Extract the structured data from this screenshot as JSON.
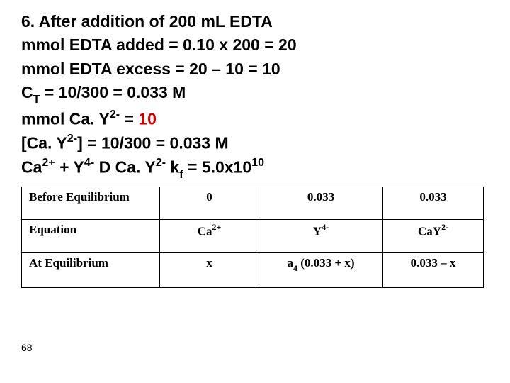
{
  "lines": {
    "l1_a": "6. After addition of 200 m",
    "l1_b": "L EDTA",
    "l2": "mmol EDTA added = 0.10 x 200 = 20",
    "l3": "mmol EDTA excess = 20 – 10 = 10",
    "l4_a": "C",
    "l4_sub": "T",
    "l4_b": " = 10/300 = 0.033 M",
    "l5_a": "mmol Ca. Y",
    "l5_sup": "2-",
    "l5_b": " = ",
    "l5_red": "10",
    "l6_a": "[Ca. Y",
    "l6_sup": "2-",
    "l6_b": "] = 10/300 = 0.033 M",
    "l7_a": "Ca",
    "l7_sup1": "2+",
    "l7_b": " + Y",
    "l7_sup2": "4-",
    "l7_arrow": " D ",
    "l7_c": "Ca. Y",
    "l7_sup3": "2-",
    "l7_d": "   k",
    "l7_sub": "f",
    "l7_e": " = 5.0x10",
    "l7_sup4": "10"
  },
  "table": {
    "rows": [
      {
        "label": "Before Equilibrium",
        "c2": "0",
        "c3": "0.033",
        "c4": "0.033"
      },
      {
        "label": "Equation",
        "c2_a": "Ca",
        "c2_sup": "2+",
        "c3_a": "Y",
        "c3_sup": "4-",
        "c4_a": "CaY",
        "c4_sup": "2-"
      },
      {
        "label": "At Equilibrium",
        "c2": "x",
        "c3_a": "a",
        "c3_sub": "4",
        "c3_b": " (0.033 + x)",
        "c4": "0.033 – x"
      }
    ]
  },
  "pagenum": "68"
}
